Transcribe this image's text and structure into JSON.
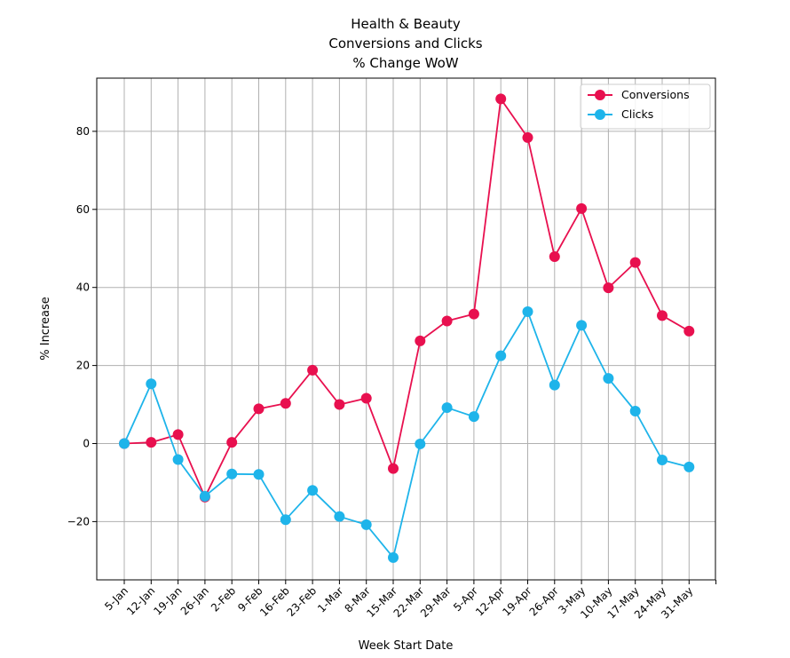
{
  "chart_data": {
    "type": "line",
    "title_lines": [
      "Health & Beauty",
      "Conversions and Clicks",
      "% Change WoW"
    ],
    "xlabel": "Week Start Date",
    "ylabel": "% Increase",
    "categories": [
      "5-Jan",
      "12-Jan",
      "19-Jan",
      "26-Jan",
      "2-Feb",
      "9-Feb",
      "16-Feb",
      "23-Feb",
      "1-Mar",
      "8-Mar",
      "15-Mar",
      "22-Mar",
      "29-Mar",
      "5-Apr",
      "12-Apr",
      "19-Apr",
      "26-Apr",
      "3-May",
      "10-May",
      "17-May",
      "24-May",
      "31-May"
    ],
    "ylim": [
      -35,
      93
    ],
    "yticks": [
      -20,
      0,
      20,
      40,
      60,
      80
    ],
    "ytick_labels": [
      "−20",
      "0",
      "20",
      "40",
      "60",
      "80"
    ],
    "grid": true,
    "legend_position": "top-right",
    "series": [
      {
        "name": "Conversions",
        "color": "#e8104f",
        "values": [
          0,
          0.3,
          2.3,
          -13.7,
          0.3,
          8.9,
          10.3,
          18.8,
          10.0,
          11.6,
          -6.4,
          26.3,
          31.4,
          33.2,
          88.3,
          78.4,
          47.9,
          60.2,
          39.9,
          46.4,
          32.8,
          28.8
        ]
      },
      {
        "name": "Clicks",
        "color": "#1eb4ea",
        "values": [
          0,
          15.3,
          -4.1,
          -13.5,
          -7.8,
          -7.9,
          -19.5,
          -12.0,
          -18.7,
          -20.8,
          -29.2,
          -0.1,
          9.2,
          6.9,
          22.5,
          33.8,
          15.0,
          30.3,
          16.7,
          8.3,
          -4.2,
          -6.0
        ]
      }
    ]
  }
}
